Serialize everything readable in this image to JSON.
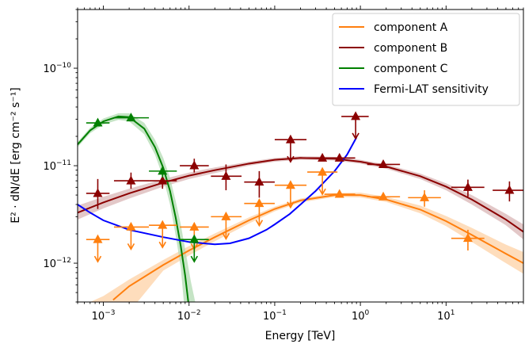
{
  "chart_data": {
    "type": "scatter",
    "xlabel": "Energy [TeV]",
    "ylabel": "E² · dN/dE [erg cm⁻² s⁻¹]",
    "xscale": "log",
    "yscale": "log",
    "xlim": [
      0.0005,
      80
    ],
    "ylim": [
      4e-13,
      4e-10
    ],
    "x_ticks": [
      {
        "value": 0.001,
        "base": "10",
        "exp": "−3"
      },
      {
        "value": 0.01,
        "base": "10",
        "exp": "−2"
      },
      {
        "value": 0.1,
        "base": "10",
        "exp": "−1"
      },
      {
        "value": 1,
        "base": "10",
        "exp": "0"
      },
      {
        "value": 10,
        "base": "10",
        "exp": "1"
      }
    ],
    "y_ticks": [
      {
        "value": 1e-12,
        "base": "10",
        "exp": "−12"
      },
      {
        "value": 1e-11,
        "base": "10",
        "exp": "−11"
      },
      {
        "value": 1e-10,
        "base": "10",
        "exp": "−10"
      }
    ],
    "legend_position": "top-right",
    "grid": false,
    "series": [
      {
        "name": "component A",
        "color": "#ff7f0e",
        "band_color": "#fdd2a6",
        "model_curve": [
          [
            0.0013,
            4.2e-13
          ],
          [
            0.002,
            5.8e-13
          ],
          [
            0.005,
            9.6e-13
          ],
          [
            0.01,
            1.35e-12
          ],
          [
            0.02,
            1.85e-12
          ],
          [
            0.05,
            2.75e-12
          ],
          [
            0.1,
            3.6e-12
          ],
          [
            0.2,
            4.4e-12
          ],
          [
            0.5,
            5e-12
          ],
          [
            1,
            5e-12
          ],
          [
            2,
            4.5e-12
          ],
          [
            5,
            3.55e-12
          ],
          [
            10,
            2.7e-12
          ],
          [
            20,
            1.95e-12
          ],
          [
            50,
            1.25e-12
          ],
          [
            80,
            1e-12
          ]
        ],
        "band_upper": [
          [
            0.0005,
            3.5e-13
          ],
          [
            0.001,
            4.6e-13
          ],
          [
            0.002,
            6.8e-13
          ],
          [
            0.005,
            1.08e-12
          ],
          [
            0.01,
            1.5e-12
          ],
          [
            0.02,
            2.02e-12
          ],
          [
            0.05,
            2.95e-12
          ],
          [
            0.1,
            3.8e-12
          ],
          [
            0.2,
            4.6e-12
          ],
          [
            0.5,
            5.25e-12
          ],
          [
            1,
            5.3e-12
          ],
          [
            2,
            4.8e-12
          ],
          [
            5,
            3.9e-12
          ],
          [
            10,
            3.05e-12
          ],
          [
            20,
            2.3e-12
          ],
          [
            50,
            1.55e-12
          ],
          [
            80,
            1.3e-12
          ]
        ],
        "band_lower": [
          [
            0.0025,
            4e-13
          ],
          [
            0.005,
            8.4e-13
          ],
          [
            0.01,
            1.2e-12
          ],
          [
            0.02,
            1.68e-12
          ],
          [
            0.05,
            2.55e-12
          ],
          [
            0.1,
            3.4e-12
          ],
          [
            0.2,
            4.2e-12
          ],
          [
            0.5,
            4.78e-12
          ],
          [
            1,
            4.72e-12
          ],
          [
            2,
            4.25e-12
          ],
          [
            5,
            3.25e-12
          ],
          [
            10,
            2.4e-12
          ],
          [
            20,
            1.65e-12
          ],
          [
            50,
            1e-12
          ],
          [
            80,
            7.8e-13
          ]
        ],
        "points": [
          {
            "x": 0.00086,
            "y": 1.75e-12,
            "x_lo": 0.00063,
            "x_hi": 0.00118,
            "ul": true
          },
          {
            "x": 0.0021,
            "y": 2.35e-12,
            "x_lo": 0.00133,
            "x_hi": 0.0034,
            "ul": true
          },
          {
            "x": 0.0049,
            "y": 2.45e-12,
            "x_lo": 0.0034,
            "x_hi": 0.0072,
            "ul": true
          },
          {
            "x": 0.0115,
            "y": 2.35e-12,
            "x_lo": 0.0078,
            "x_hi": 0.017,
            "ul": true
          },
          {
            "x": 0.027,
            "y": 3e-12,
            "x_lo": 0.018,
            "x_hi": 0.041,
            "ul": true
          },
          {
            "x": 0.066,
            "y": 4.1e-12,
            "x_lo": 0.044,
            "x_hi": 0.1,
            "ul": true
          },
          {
            "x": 0.153,
            "y": 6.3e-12,
            "x_lo": 0.1,
            "x_hi": 0.235,
            "ul": true
          },
          {
            "x": 0.36,
            "y": 8.6e-12,
            "x_lo": 0.24,
            "x_hi": 0.54,
            "ul": true
          },
          {
            "x": 0.57,
            "y": 5.1e-12,
            "x_lo": 0.38,
            "x_hi": 0.87,
            "ul": false
          },
          {
            "x": 1.85,
            "y": 4.8e-12,
            "x_lo": 1.2,
            "x_hi": 2.9,
            "ul": false
          },
          {
            "x": 5.6,
            "y": 4.7e-12,
            "x_lo": 3.6,
            "x_hi": 8.7,
            "ul": false,
            "y_lo": 3.8e-12,
            "y_hi": 5.6e-12
          },
          {
            "x": 18,
            "y": 1.8e-12,
            "x_lo": 11.5,
            "x_hi": 28,
            "ul": false,
            "y_lo": 1.35e-12,
            "y_hi": 2.2e-12
          }
        ]
      },
      {
        "name": "component B",
        "color": "#8b0000",
        "band_color": "#d9b5b5",
        "model_curve": [
          [
            0.0005,
            3.3e-12
          ],
          [
            0.001,
            4.2e-12
          ],
          [
            0.002,
            5.2e-12
          ],
          [
            0.005,
            6.7e-12
          ],
          [
            0.01,
            7.9e-12
          ],
          [
            0.02,
            9e-12
          ],
          [
            0.05,
            1.05e-11
          ],
          [
            0.1,
            1.15e-11
          ],
          [
            0.2,
            1.2e-11
          ],
          [
            0.5,
            1.18e-11
          ],
          [
            1,
            1.1e-11
          ],
          [
            2,
            9.8e-12
          ],
          [
            5,
            7.8e-12
          ],
          [
            10,
            6.1e-12
          ],
          [
            20,
            4.5e-12
          ],
          [
            50,
            2.8e-12
          ],
          [
            80,
            2.1e-12
          ]
        ],
        "band_upper": [
          [
            0.0005,
            3.9e-12
          ],
          [
            0.001,
            4.8e-12
          ],
          [
            0.002,
            5.8e-12
          ],
          [
            0.005,
            7.3e-12
          ],
          [
            0.01,
            8.5e-12
          ],
          [
            0.02,
            9.6e-12
          ],
          [
            0.05,
            1.1e-11
          ],
          [
            0.1,
            1.2e-11
          ],
          [
            0.2,
            1.25e-11
          ],
          [
            0.5,
            1.23e-11
          ],
          [
            1,
            1.15e-11
          ],
          [
            2,
            1.03e-11
          ],
          [
            5,
            8.3e-12
          ],
          [
            10,
            6.6e-12
          ],
          [
            20,
            5e-12
          ],
          [
            50,
            3.2e-12
          ],
          [
            80,
            2.5e-12
          ]
        ],
        "band_lower": [
          [
            0.0005,
            2.8e-12
          ],
          [
            0.001,
            3.65e-12
          ],
          [
            0.002,
            4.6e-12
          ],
          [
            0.005,
            6.1e-12
          ],
          [
            0.01,
            7.3e-12
          ],
          [
            0.02,
            8.4e-12
          ],
          [
            0.05,
            1e-11
          ],
          [
            0.1,
            1.1e-11
          ],
          [
            0.2,
            1.15e-11
          ],
          [
            0.5,
            1.13e-11
          ],
          [
            1,
            1.05e-11
          ],
          [
            2,
            9.3e-12
          ],
          [
            5,
            7.3e-12
          ],
          [
            10,
            5.6e-12
          ],
          [
            20,
            4e-12
          ],
          [
            50,
            2.45e-12
          ],
          [
            80,
            1.75e-12
          ]
        ],
        "points": [
          {
            "x": 0.00086,
            "y": 5.2e-12,
            "x_lo": 0.00063,
            "x_hi": 0.00118,
            "ul": false,
            "y_lo": 3.6e-12,
            "y_hi": 7.3e-12
          },
          {
            "x": 0.0021,
            "y": 7e-12,
            "x_lo": 0.00133,
            "x_hi": 0.0034,
            "ul": false,
            "y_lo": 5.8e-12,
            "y_hi": 8.5e-12
          },
          {
            "x": 0.0049,
            "y": 7e-12,
            "x_lo": 0.0034,
            "x_hi": 0.0072,
            "ul": false,
            "y_lo": 5.8e-12,
            "y_hi": 8.3e-12
          },
          {
            "x": 0.0115,
            "y": 1e-11,
            "x_lo": 0.0078,
            "x_hi": 0.017,
            "ul": false,
            "y_lo": 8.5e-12,
            "y_hi": 1.18e-11
          },
          {
            "x": 0.027,
            "y": 7.8e-12,
            "x_lo": 0.018,
            "x_hi": 0.041,
            "ul": false,
            "y_lo": 5.6e-12,
            "y_hi": 1.03e-11
          },
          {
            "x": 0.066,
            "y": 6.8e-12,
            "x_lo": 0.044,
            "x_hi": 0.1,
            "ul": false,
            "y_lo": 4.7e-12,
            "y_hi": 8.8e-12
          },
          {
            "x": 0.153,
            "y": 1.85e-11,
            "x_lo": 0.1,
            "x_hi": 0.235,
            "ul": true
          },
          {
            "x": 0.36,
            "y": 1.2e-11,
            "x_lo": 0.24,
            "x_hi": 0.54,
            "ul": false,
            "y_lo": 1.12e-11,
            "y_hi": 1.28e-11
          },
          {
            "x": 0.57,
            "y": 1.2e-11,
            "x_lo": 0.38,
            "x_hi": 0.87,
            "ul": false,
            "y_lo": 1.12e-11,
            "y_hi": 1.28e-11
          },
          {
            "x": 0.88,
            "y": 3.2e-11,
            "x_lo": 0.6,
            "x_hi": 1.25,
            "ul": true
          },
          {
            "x": 1.85,
            "y": 1.03e-11,
            "x_lo": 1.2,
            "x_hi": 2.9,
            "ul": false,
            "y_lo": 9.5e-12,
            "y_hi": 1.11e-11
          },
          {
            "x": 18,
            "y": 6e-12,
            "x_lo": 11.5,
            "x_hi": 28,
            "ul": false,
            "y_lo": 4.8e-12,
            "y_hi": 7.2e-12
          },
          {
            "x": 55,
            "y": 5.6e-12,
            "x_lo": 35,
            "x_hi": 80,
            "ul": false,
            "y_lo": 4.3e-12,
            "y_hi": 6.9e-12
          }
        ]
      },
      {
        "name": "component C",
        "color": "#008000",
        "band_color": "#b2dbb2",
        "model_curve": [
          [
            0.0005,
            1.65e-11
          ],
          [
            0.0007,
            2.3e-11
          ],
          [
            0.001,
            2.85e-11
          ],
          [
            0.0015,
            3.2e-11
          ],
          [
            0.002,
            3.15e-11
          ],
          [
            0.003,
            2.4e-11
          ],
          [
            0.004,
            1.55e-11
          ],
          [
            0.005,
            9.5e-12
          ],
          [
            0.006,
            5.5e-12
          ],
          [
            0.007,
            2.9e-12
          ],
          [
            0.008,
            1.5e-12
          ],
          [
            0.009,
            7.5e-13
          ],
          [
            0.0098,
            4e-13
          ]
        ],
        "band_upper": [
          [
            0.0005,
            1.75e-11
          ],
          [
            0.0007,
            2.45e-11
          ],
          [
            0.001,
            3.05e-11
          ],
          [
            0.0015,
            3.45e-11
          ],
          [
            0.002,
            3.45e-11
          ],
          [
            0.003,
            2.75e-11
          ],
          [
            0.004,
            1.85e-11
          ],
          [
            0.005,
            1.2e-11
          ],
          [
            0.006,
            7.5e-12
          ],
          [
            0.007,
            4.3e-12
          ],
          [
            0.008,
            2.5e-12
          ],
          [
            0.009,
            1.4e-12
          ],
          [
            0.0105,
            6.5e-13
          ],
          [
            0.0118,
            4e-13
          ]
        ],
        "band_lower": [
          [
            0.0005,
            1.55e-11
          ],
          [
            0.0007,
            2.15e-11
          ],
          [
            0.001,
            2.65e-11
          ],
          [
            0.0015,
            2.95e-11
          ],
          [
            0.002,
            2.85e-11
          ],
          [
            0.003,
            2.1e-11
          ],
          [
            0.004,
            1.3e-11
          ],
          [
            0.005,
            7.5e-12
          ],
          [
            0.006,
            4e-12
          ],
          [
            0.007,
            1.9e-12
          ],
          [
            0.008,
            9e-13
          ],
          [
            0.0087,
            4e-13
          ]
        ],
        "points": [
          {
            "x": 0.00086,
            "y": 2.75e-11,
            "x_lo": 0.00063,
            "x_hi": 0.00118,
            "ul": false,
            "y_lo": 2.55e-11,
            "y_hi": 2.95e-11
          },
          {
            "x": 0.0021,
            "y": 3.1e-11,
            "x_lo": 0.00133,
            "x_hi": 0.0034,
            "ul": false,
            "y_lo": 2.9e-11,
            "y_hi": 3.3e-11
          },
          {
            "x": 0.0049,
            "y": 8.8e-12,
            "x_lo": 0.0034,
            "x_hi": 0.0072,
            "ul": false,
            "y_lo": 7.6e-12,
            "y_hi": 1e-11
          },
          {
            "x": 0.0115,
            "y": 1.75e-12,
            "x_lo": 0.0078,
            "x_hi": 0.017,
            "ul": true
          }
        ]
      },
      {
        "name": "Fermi-LAT sensitivity",
        "color": "#0000ff",
        "model_curve": [
          [
            0.0005,
            4e-12
          ],
          [
            0.0007,
            3.3e-12
          ],
          [
            0.001,
            2.75e-12
          ],
          [
            0.002,
            2.2e-12
          ],
          [
            0.005,
            1.85e-12
          ],
          [
            0.01,
            1.65e-12
          ],
          [
            0.02,
            1.56e-12
          ],
          [
            0.03,
            1.6e-12
          ],
          [
            0.05,
            1.8e-12
          ],
          [
            0.08,
            2.2e-12
          ],
          [
            0.1,
            2.5e-12
          ],
          [
            0.15,
            3.2e-12
          ],
          [
            0.2,
            4e-12
          ],
          [
            0.3,
            5.5e-12
          ],
          [
            0.5,
            8.8e-12
          ],
          [
            0.7,
            1.3e-11
          ],
          [
            0.9,
            1.95e-11
          ]
        ]
      }
    ]
  }
}
